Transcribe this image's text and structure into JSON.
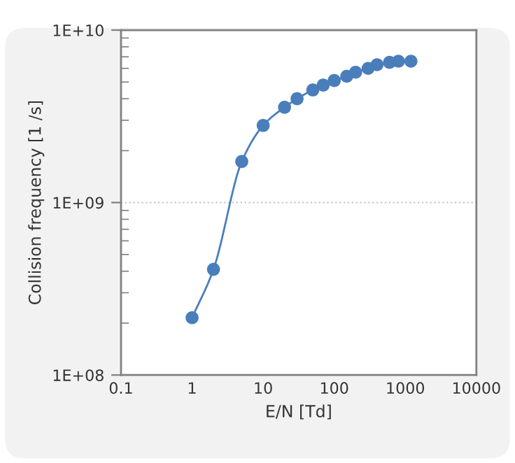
{
  "chart_data": {
    "type": "line",
    "xlabel": "E/N [Td]",
    "ylabel": "Collision frequency [1 /s]",
    "log": "xy",
    "grid": "y",
    "marker": "circle",
    "line_style": "solid",
    "xlim": [
      0.1,
      10000
    ],
    "xticks": [
      0.1,
      1,
      10,
      100,
      1000,
      10000
    ],
    "ylim": [
      100000000,
      10000000000
    ],
    "yticks": [
      {
        "value": 100000000,
        "label": "1E+08"
      },
      {
        "value": 1000000000,
        "label": "1E+09"
      },
      {
        "value": 10000000000,
        "label": "1E+10"
      }
    ],
    "series": [
      {
        "color": "#4a7ebb",
        "x": [
          1,
          2,
          5,
          10,
          20,
          30,
          50,
          70,
          100,
          150,
          200,
          300,
          400,
          600,
          800,
          1200
        ],
        "values": [
          215000000,
          410000000,
          1730000000,
          2800000000,
          3570000000,
          4000000000,
          4500000000,
          4800000000,
          5100000000,
          5400000000,
          5700000000,
          6000000000,
          6300000000,
          6500000000,
          6600000000,
          6600000000
        ]
      }
    ]
  }
}
